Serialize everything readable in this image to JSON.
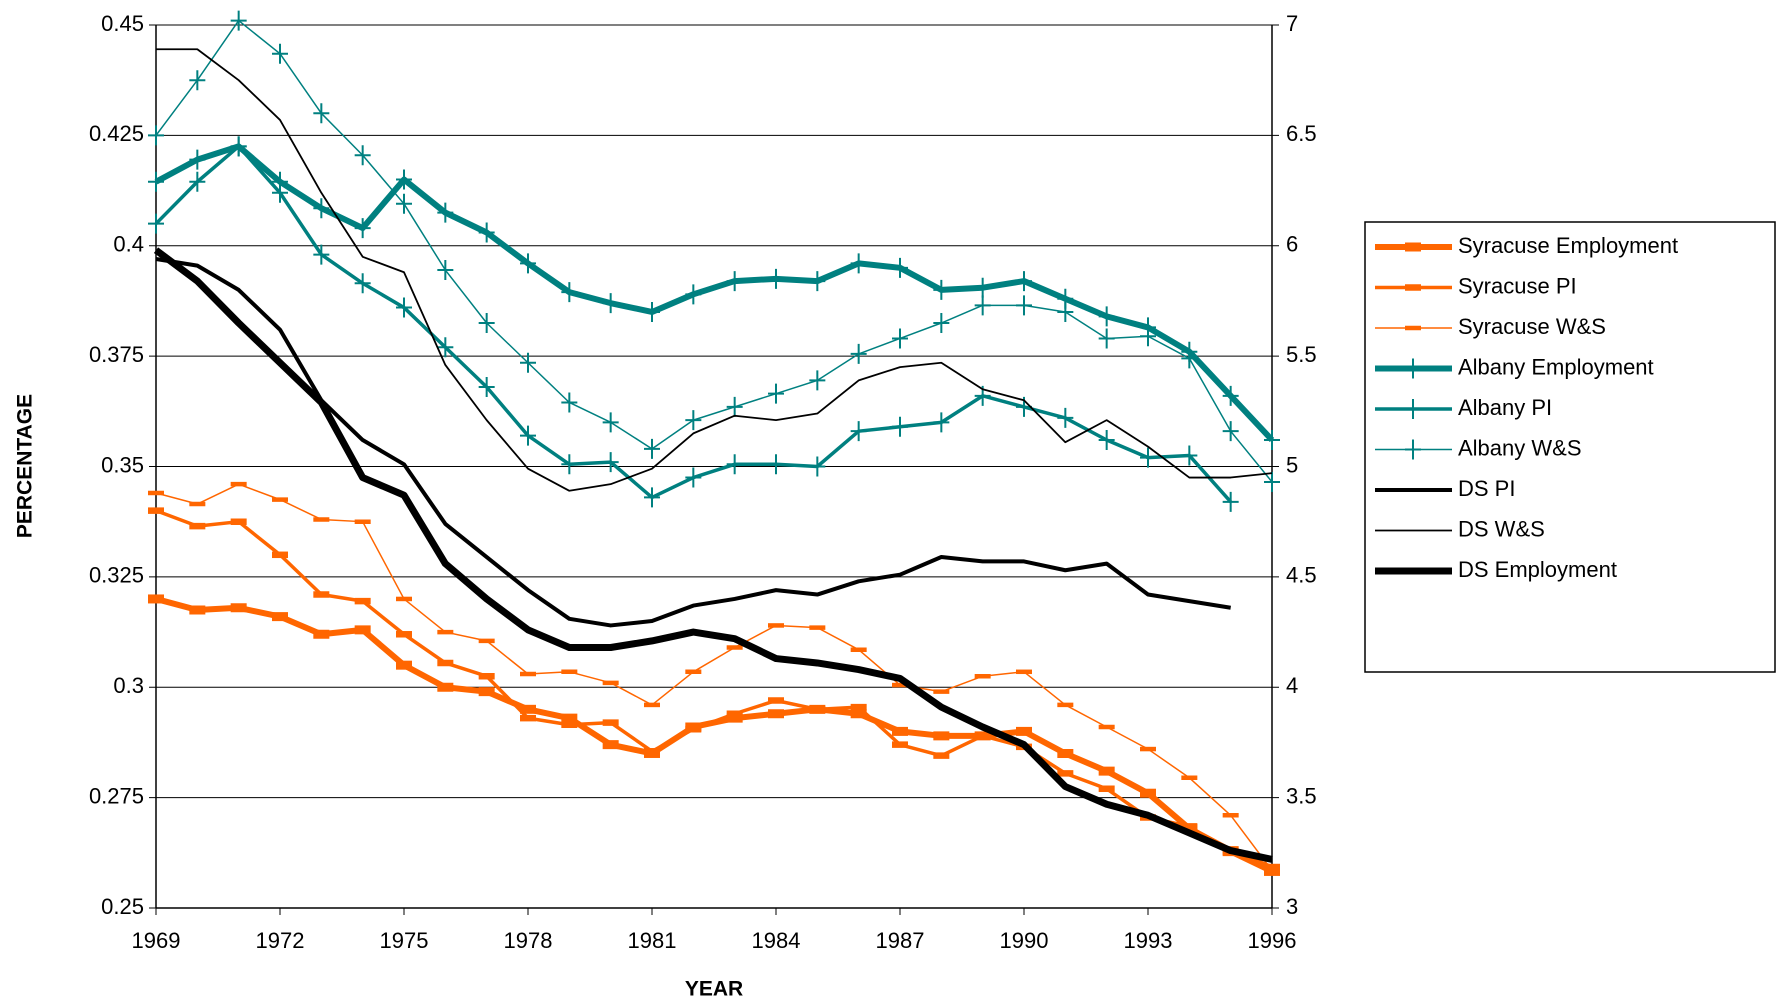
{
  "chart_data": {
    "type": "line",
    "x_label": "YEAR",
    "y_label": "PERCENTAGE",
    "x": [
      1969,
      1970,
      1971,
      1972,
      1973,
      1974,
      1975,
      1976,
      1977,
      1978,
      1979,
      1980,
      1981,
      1982,
      1983,
      1984,
      1985,
      1986,
      1987,
      1988,
      1989,
      1990,
      1991,
      1992,
      1993,
      1994,
      1995,
      1996
    ],
    "xlim": [
      1969,
      1996
    ],
    "xticks": [
      1969,
      1972,
      1975,
      1978,
      1981,
      1984,
      1987,
      1990,
      1993,
      1996
    ],
    "ylim": [
      0.25,
      0.45
    ],
    "yticks": [
      0.25,
      0.275,
      0.3,
      0.325,
      0.35,
      0.375,
      0.4,
      0.425,
      0.45
    ],
    "y2lim": [
      3,
      7
    ],
    "y2ticks": [
      3,
      3.5,
      4,
      4.5,
      5,
      5.5,
      6,
      6.5,
      7
    ],
    "grid": true,
    "legend": "right",
    "series": [
      {
        "name": "Syracuse Employment",
        "color": "#ff6600",
        "width": 6,
        "marker": "dash",
        "values": [
          0.32,
          0.3175,
          0.318,
          0.316,
          0.312,
          0.313,
          0.305,
          0.3,
          0.299,
          0.295,
          0.293,
          0.287,
          0.285,
          0.291,
          0.293,
          0.294,
          0.295,
          0.294,
          0.29,
          0.289,
          0.289,
          0.29,
          0.285,
          0.281,
          0.276,
          0.268,
          0.263,
          0.259
        ]
      },
      {
        "name": "Syracuse PI",
        "color": "#ff6600",
        "width": 3.5,
        "marker": "dash",
        "values": [
          0.34,
          0.3365,
          0.3375,
          0.33,
          0.321,
          0.3195,
          0.312,
          0.3055,
          0.3025,
          0.293,
          0.2915,
          0.292,
          0.2855,
          0.2905,
          0.294,
          0.297,
          0.295,
          0.2955,
          0.287,
          0.2845,
          0.289,
          0.2865,
          0.2805,
          0.277,
          0.2705,
          0.2685,
          0.2625,
          0.258
        ]
      },
      {
        "name": "Syracuse W&S",
        "color": "#ff6600",
        "width": 1.5,
        "marker": "dash",
        "values": [
          0.344,
          0.3415,
          0.346,
          0.3425,
          0.338,
          0.3375,
          0.32,
          0.3125,
          0.3105,
          0.303,
          0.3035,
          0.301,
          0.296,
          0.3035,
          0.309,
          0.314,
          0.3135,
          0.3085,
          0.3005,
          0.299,
          0.3025,
          0.3035,
          0.296,
          0.291,
          0.286,
          0.2795,
          0.271,
          0.2585
        ]
      },
      {
        "name": "Albany Employment",
        "color": "#008080",
        "width": 6,
        "marker": "plus",
        "values": [
          0.4145,
          0.4195,
          0.4225,
          0.4145,
          0.4085,
          0.404,
          0.415,
          0.4075,
          0.403,
          0.396,
          0.3895,
          0.387,
          0.385,
          0.389,
          0.392,
          0.3925,
          0.392,
          0.396,
          0.395,
          0.39,
          0.3905,
          0.392,
          0.388,
          0.384,
          0.3815,
          0.376,
          0.366,
          0.356
        ]
      },
      {
        "name": "Albany PI",
        "color": "#008080",
        "width": 3.5,
        "marker": "plus",
        "values": [
          0.405,
          0.4145,
          0.4225,
          0.412,
          0.398,
          0.3915,
          0.386,
          0.377,
          0.368,
          0.357,
          0.3505,
          0.351,
          0.343,
          0.3475,
          0.3505,
          0.3505,
          0.35,
          0.358,
          0.359,
          0.36,
          0.366,
          0.3635,
          0.361,
          0.356,
          0.352,
          0.3525,
          0.342,
          null
        ]
      },
      {
        "name": "Albany W&S",
        "color": "#008080",
        "width": 1.5,
        "marker": "plus",
        "values": [
          0.425,
          0.4375,
          0.451,
          0.4435,
          0.43,
          0.4205,
          0.4095,
          0.3945,
          0.3825,
          0.3735,
          0.3645,
          0.36,
          0.354,
          0.3605,
          0.3635,
          0.3665,
          0.3695,
          0.3755,
          0.379,
          0.3825,
          0.3865,
          0.3865,
          0.385,
          0.379,
          0.3795,
          0.3745,
          0.358,
          0.3465
        ]
      },
      {
        "name": "DS PI",
        "color": "#000000",
        "width": 4,
        "marker": "none",
        "axis": "y2",
        "values": [
          5.94,
          5.91,
          5.8,
          5.62,
          5.3,
          5.12,
          5.01,
          4.74,
          4.59,
          4.44,
          4.31,
          4.28,
          4.3,
          4.37,
          4.4,
          4.44,
          4.42,
          4.48,
          4.51,
          4.59,
          4.57,
          4.57,
          4.53,
          4.56,
          4.42,
          4.39,
          4.36,
          null
        ]
      },
      {
        "name": "DS W&S",
        "color": "#000000",
        "width": 1.8,
        "marker": "none",
        "axis": "y2",
        "values": [
          6.89,
          6.89,
          6.75,
          6.57,
          6.24,
          5.95,
          5.88,
          5.46,
          5.21,
          4.99,
          4.89,
          4.92,
          4.99,
          5.15,
          5.23,
          5.21,
          5.24,
          5.39,
          5.45,
          5.47,
          5.35,
          5.3,
          5.11,
          5.21,
          5.09,
          4.95,
          4.95,
          4.97
        ]
      },
      {
        "name": "DS Employment",
        "color": "#000000",
        "width": 7,
        "marker": "none",
        "axis": "y2",
        "values": [
          5.98,
          5.84,
          5.65,
          5.47,
          5.29,
          4.95,
          4.87,
          4.56,
          4.4,
          4.26,
          4.18,
          4.18,
          4.21,
          4.25,
          4.22,
          4.13,
          4.11,
          4.08,
          4.04,
          3.91,
          3.82,
          3.74,
          3.55,
          3.47,
          3.42,
          3.34,
          3.26,
          3.22
        ]
      }
    ]
  }
}
